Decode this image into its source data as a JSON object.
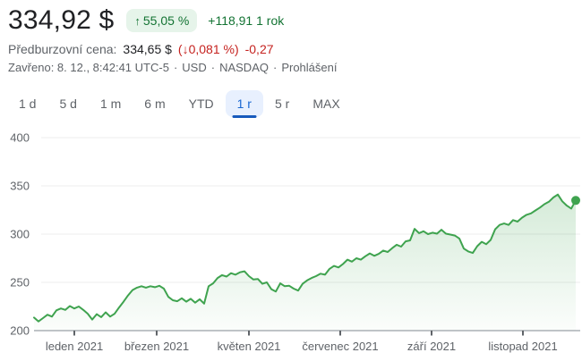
{
  "header": {
    "price": "334,92 $",
    "badge": {
      "arrow": "↑",
      "percent": "55,05 %"
    },
    "change_period": "+118,91 1 rok",
    "premarket": {
      "label": "Předburzovní cena:",
      "price": "334,65 $",
      "percent": "(↓0,081 %)",
      "absolute": "-0,27"
    },
    "meta": {
      "status": "Zavřeno: 8. 12., 8:42:41 UTC-5",
      "separator": "·",
      "currency": "USD",
      "exchange": "NASDAQ",
      "disclaimer": "Prohlášení"
    }
  },
  "tabs": {
    "items": [
      "1 d",
      "5 d",
      "1 m",
      "6 m",
      "YTD",
      "1 r",
      "5 r",
      "MAX"
    ],
    "selected": "1 r",
    "selected_index": 5
  },
  "colors": {
    "price_text": "#202124",
    "green_text": "#137333",
    "green_badge_bg": "#e6f4ea",
    "red_text": "#c5221f",
    "gray_text": "#5f6368",
    "selected_tab_text": "#1967d2",
    "selected_tab_bg": "#e8f0fe",
    "selected_tab_underline": "#185abc",
    "chart_line_green": "#3fa34f"
  },
  "chart_data": {
    "type": "area",
    "unit": "USD",
    "period": "1 rok",
    "last_price": 334.92,
    "ylim": [
      200,
      400
    ],
    "y_ticks": [
      400,
      350,
      300,
      250,
      200
    ],
    "x_tick_labels": [
      "leden 2021",
      "březen 2021",
      "květen 2021",
      "červenec 2021",
      "září 2021",
      "listopad 2021"
    ],
    "x_tick_positions": [
      0.0744,
      0.2264,
      0.3967,
      0.5653,
      0.7339,
      0.9025
    ],
    "grid_on": true,
    "legend": "none",
    "prices": [
      213.5,
      209.5,
      213,
      216.5,
      214.5,
      221,
      223,
      221.5,
      225.5,
      223,
      225,
      221.5,
      217.5,
      211.5,
      217,
      214,
      219,
      214.5,
      217.5,
      224,
      230,
      236.5,
      242,
      244.5,
      246,
      244.5,
      246,
      245,
      246.5,
      243.5,
      235,
      231.5,
      230.5,
      233.5,
      230,
      233,
      229,
      232.5,
      228,
      246,
      249,
      254.5,
      257.5,
      256,
      259.5,
      258,
      260.5,
      261.5,
      256.5,
      253,
      253.5,
      248.5,
      250,
      243,
      240.5,
      249,
      246,
      246.5,
      243.5,
      241.5,
      248.5,
      252,
      254.5,
      256.5,
      259,
      258,
      264,
      267,
      265.5,
      269,
      273.5,
      271.5,
      275,
      273.5,
      277,
      280,
      277.5,
      279.5,
      283,
      281.5,
      285.5,
      289,
      287,
      292.5,
      293.5,
      305.5,
      301,
      303,
      300,
      301.5,
      300.5,
      304.5,
      300.5,
      299.5,
      298.5,
      295.5,
      285,
      282,
      280.5,
      287.5,
      292,
      289.5,
      294,
      305,
      309.5,
      311,
      309.5,
      314.5,
      313,
      317,
      320,
      321.5,
      324.5,
      327.5,
      331,
      333.5,
      338,
      341,
      334,
      329.5,
      326.5,
      334.92
    ],
    "line_color": "#3fa34f",
    "fill_top": "rgba(63,163,79,0.30)",
    "fill_bottom": "rgba(63,163,79,0.02)",
    "grid_color": "#ececec",
    "axis_color": "#9aa0a6",
    "tick_color": "#5f6368",
    "label_color": "#5f6368"
  }
}
